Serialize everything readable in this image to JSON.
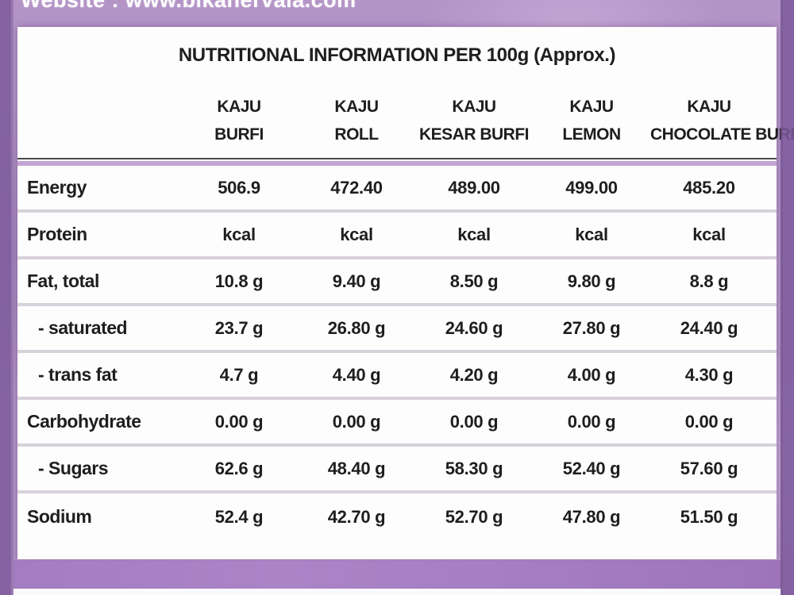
{
  "banner": {
    "text": "Website : www.bikanervala.com"
  },
  "table": {
    "title": "NUTRITIONAL INFORMATION PER 100g (Approx.)",
    "columns": [
      {
        "line1": "KAJU",
        "line2": "BURFI"
      },
      {
        "line1": "KAJU",
        "line2": "ROLL"
      },
      {
        "line1": "KAJU",
        "line2": "KESAR BURFI"
      },
      {
        "line1": "KAJU",
        "line2": "LEMON"
      },
      {
        "line1": "KAJU",
        "line2": "CHOCOLATE BURFI"
      }
    ],
    "rows": [
      {
        "label": "Energy",
        "values": [
          "506.9",
          "472.40",
          "489.00",
          "499.00",
          "485.20"
        ]
      },
      {
        "label": "Protein",
        "values": [
          "kcal",
          "kcal",
          "kcal",
          "kcal",
          "kcal"
        ]
      },
      {
        "label": "Fat, total",
        "values": [
          "10.8 g",
          "9.40 g",
          "8.50 g",
          "9.80 g",
          "8.8 g"
        ]
      },
      {
        "label": "- saturated",
        "values": [
          "23.7 g",
          "26.80 g",
          "24.60 g",
          "27.80 g",
          "24.40 g"
        ]
      },
      {
        "label": "- trans fat",
        "values": [
          "4.7 g",
          "4.40 g",
          "4.20 g",
          "4.00 g",
          "4.30 g"
        ]
      },
      {
        "label": "Carbohydrate",
        "values": [
          "0.00 g",
          "0.00 g",
          "0.00 g",
          "0.00 g",
          "0.00 g"
        ]
      },
      {
        "label": "- Sugars",
        "values": [
          "62.6 g",
          "48.40 g",
          "58.30 g",
          "52.40 g",
          "57.60 g"
        ]
      },
      {
        "label": "Sodium",
        "values": [
          "52.4 g",
          "42.70 g",
          "52.70 g",
          "47.80 g",
          "51.50 g"
        ]
      }
    ]
  },
  "colors": {
    "bg": "#b493c7",
    "bg_light": "#c4a6d4",
    "bg_dark": "#a583bd",
    "edge": "#7e5a9c",
    "band": "#a47cc1",
    "card": "#fdfdfd",
    "text": "#1e1e1e",
    "row_divider": "#d7d2da",
    "header_divider_purple": "#c2a4d6",
    "header_divider_dark": "#4a4a4a",
    "banner_text": "#ffffff"
  }
}
